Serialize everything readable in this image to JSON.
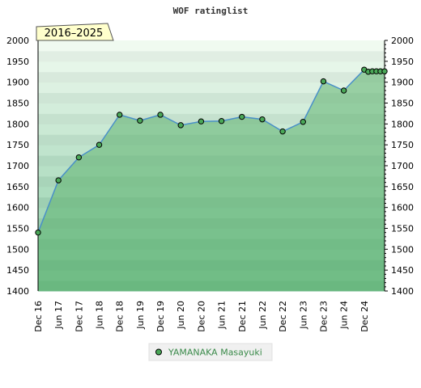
{
  "chart_data": {
    "type": "area",
    "title": "WOF ratinglist",
    "period_label": "2016–2025",
    "ylim": [
      1400,
      2000
    ],
    "y_ticks": [
      1400,
      1450,
      1500,
      1550,
      1600,
      1650,
      1700,
      1750,
      1800,
      1850,
      1900,
      1950,
      2000
    ],
    "x_tick_labels": [
      "Dec 16",
      "Jun 17",
      "Dec 17",
      "Jun 18",
      "Dec 18",
      "Jun 19",
      "Dec 19",
      "Jun 20",
      "Dec 20",
      "Jun 21",
      "Dec 21",
      "Jun 22",
      "Dec 22",
      "Jun 23",
      "Dec 23",
      "Jun 24",
      "Dec 24"
    ],
    "x_range": [
      0,
      17
    ],
    "series": [
      {
        "name": "YAMANAKA Masayuki",
        "color": "#2f8a3a",
        "x": [
          0,
          1,
          2,
          3,
          4,
          5,
          6,
          7,
          8,
          9,
          10,
          11,
          12,
          13,
          14,
          15,
          16,
          16.2,
          16.4,
          16.6,
          16.8,
          17
        ],
        "values": [
          1540,
          1665,
          1720,
          1750,
          1822,
          1808,
          1822,
          1797,
          1806,
          1807,
          1817,
          1811,
          1782,
          1805,
          1902,
          1880,
          1930,
          1925,
          1926,
          1926,
          1926,
          1926
        ]
      }
    ],
    "grid": true,
    "legend_position": "bottom"
  }
}
